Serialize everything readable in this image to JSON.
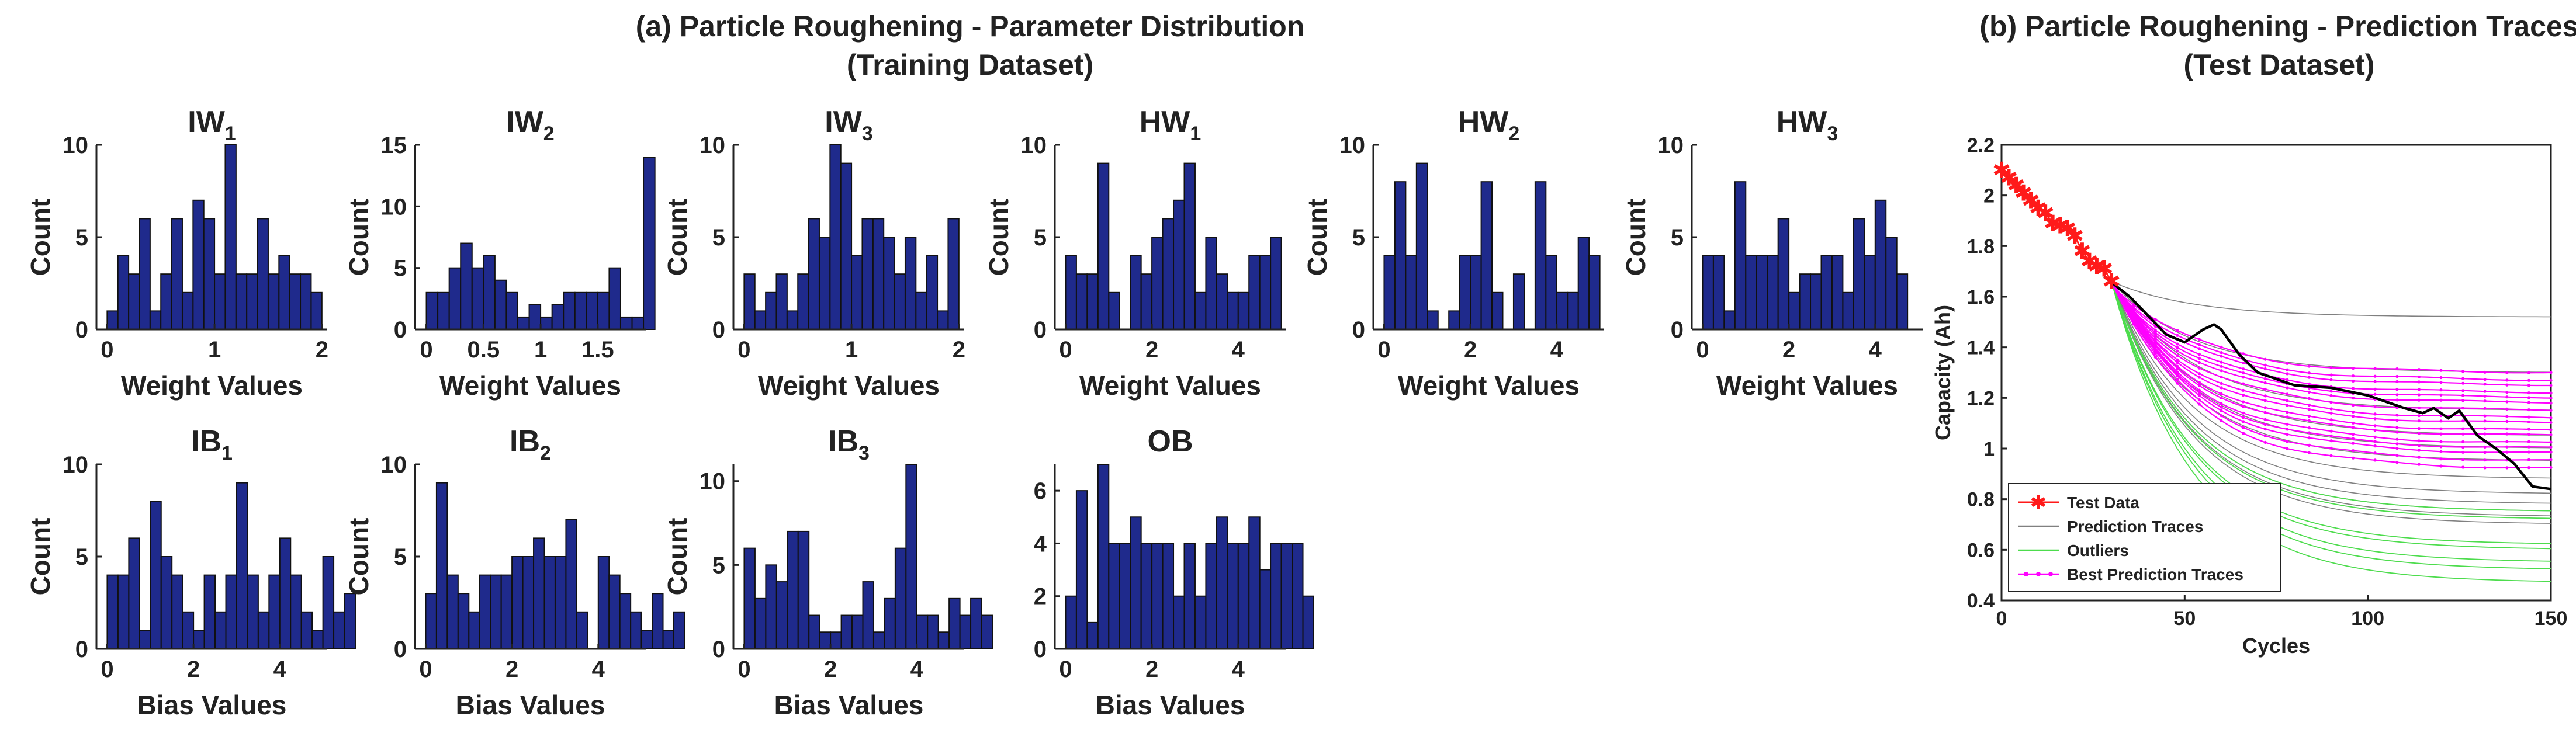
{
  "header": {
    "left_title_line1": "(a) Particle Roughening - Parameter Distribution",
    "left_title_line2": "(Training Dataset)",
    "right_title_line1": "(b) Particle Roughening - Prediction Traces",
    "right_title_line2": "(Test Dataset)"
  },
  "colors": {
    "bar_fill": "#1f2a8c",
    "bar_edge": "#111111",
    "test_data": "#ff1a1a",
    "prediction": "#808080",
    "outliers": "#4ddc4d",
    "best": "#ff00ff",
    "actual": "#000000"
  },
  "chart_data": [
    {
      "type": "bar",
      "title_base": "IW",
      "title_sub": "1",
      "xlabel": "Weight Values",
      "ylabel": "Count",
      "xlim": [
        -0.1,
        2.05
      ],
      "ylim": [
        0,
        10
      ],
      "bin_start": 0,
      "bin_width": 0.1,
      "xticks": [
        0,
        1,
        2
      ],
      "xtick_labels": [
        "0",
        "1",
        "2"
      ],
      "yticks": [
        0,
        5,
        10
      ],
      "ytick_labels": [
        "0",
        "5",
        "10"
      ],
      "values": [
        1,
        4,
        3,
        6,
        1,
        3,
        6,
        2,
        7,
        6,
        3,
        10,
        3,
        3,
        6,
        3,
        4,
        3,
        3,
        2
      ]
    },
    {
      "type": "bar",
      "title_base": "IW",
      "title_sub": "2",
      "xlabel": "Weight Values",
      "ylabel": "Count",
      "xlim": [
        -0.1,
        1.92
      ],
      "ylim": [
        0,
        15
      ],
      "bin_start": 0,
      "bin_width": 0.1,
      "xticks": [
        0,
        0.5,
        1,
        1.5
      ],
      "xtick_labels": [
        "0",
        "0.5",
        "1",
        "1.5"
      ],
      "yticks": [
        0,
        5,
        10,
        15
      ],
      "ytick_labels": [
        "0",
        "5",
        "10",
        "15"
      ],
      "values": [
        3,
        3,
        5,
        7,
        5,
        6,
        4,
        3,
        1,
        2,
        1,
        2,
        3,
        3,
        3,
        3,
        5,
        1,
        1,
        14
      ]
    },
    {
      "type": "bar",
      "title_base": "IW",
      "title_sub": "3",
      "xlabel": "Weight Values",
      "ylabel": "Count",
      "xlim": [
        -0.1,
        2.05
      ],
      "ylim": [
        0,
        10
      ],
      "bin_start": 0,
      "bin_width": 0.1,
      "xticks": [
        0,
        1,
        2
      ],
      "xtick_labels": [
        "0",
        "1",
        "2"
      ],
      "yticks": [
        0,
        5,
        10
      ],
      "ytick_labels": [
        "0",
        "5",
        "10"
      ],
      "values": [
        3,
        1,
        2,
        3,
        1,
        3,
        6,
        5,
        10,
        9,
        4,
        6,
        6,
        5,
        3,
        5,
        2,
        4,
        1,
        6
      ]
    },
    {
      "type": "bar",
      "title_base": "HW",
      "title_sub": "1",
      "xlabel": "Weight Values",
      "ylabel": "Count",
      "xlim": [
        -0.25,
        5.1
      ],
      "ylim": [
        0,
        10
      ],
      "bin_start": 0,
      "bin_width": 0.25,
      "xticks": [
        0,
        2,
        4
      ],
      "xtick_labels": [
        "0",
        "2",
        "4"
      ],
      "yticks": [
        0,
        5,
        10
      ],
      "ytick_labels": [
        "0",
        "5",
        "10"
      ],
      "values": [
        4,
        3,
        3,
        9,
        2,
        0,
        4,
        3,
        5,
        6,
        7,
        9,
        2,
        5,
        3,
        2,
        2,
        4,
        4,
        5
      ]
    },
    {
      "type": "bar",
      "title_base": "HW",
      "title_sub": "2",
      "xlabel": "Weight Values",
      "ylabel": "Count",
      "xlim": [
        -0.25,
        5.1
      ],
      "ylim": [
        0,
        10
      ],
      "bin_start": 0,
      "bin_width": 0.25,
      "xticks": [
        0,
        2,
        4
      ],
      "xtick_labels": [
        "0",
        "2",
        "4"
      ],
      "yticks": [
        0,
        5,
        10
      ],
      "ytick_labels": [
        "0",
        "5",
        "10"
      ],
      "values": [
        4,
        8,
        4,
        9,
        1,
        0,
        1,
        4,
        4,
        8,
        2,
        0,
        3,
        0,
        8,
        4,
        2,
        2,
        5,
        4
      ]
    },
    {
      "type": "bar",
      "title_base": "HW",
      "title_sub": "3",
      "xlabel": "Weight Values",
      "ylabel": "Count",
      "xlim": [
        -0.25,
        5.1
      ],
      "ylim": [
        0,
        10
      ],
      "bin_start": 0,
      "bin_width": 0.25,
      "xticks": [
        0,
        2,
        4
      ],
      "xtick_labels": [
        "0",
        "2",
        "4"
      ],
      "yticks": [
        0,
        5,
        10
      ],
      "ytick_labels": [
        "0",
        "5",
        "10"
      ],
      "values": [
        4,
        4,
        1,
        8,
        4,
        4,
        4,
        6,
        2,
        3,
        3,
        4,
        4,
        2,
        6,
        4,
        7,
        5,
        3,
        0
      ]
    },
    {
      "type": "bar",
      "title_base": "IB",
      "title_sub": "1",
      "xlabel": "Bias Values",
      "ylabel": "Count",
      "xlim": [
        -0.25,
        5.1
      ],
      "ylim": [
        0,
        10
      ],
      "bin_start": 0,
      "bin_width": 0.25,
      "xticks": [
        0,
        2,
        4
      ],
      "xtick_labels": [
        "0",
        "2",
        "4"
      ],
      "yticks": [
        0,
        5,
        10
      ],
      "ytick_labels": [
        "0",
        "5",
        "10"
      ],
      "values": [
        4,
        4,
        6,
        1,
        8,
        5,
        4,
        2,
        1,
        4,
        2,
        4,
        9,
        4,
        2,
        4,
        6,
        4,
        2,
        1,
        5,
        2,
        3
      ]
    },
    {
      "type": "bar",
      "title_base": "IB",
      "title_sub": "2",
      "xlabel": "Bias Values",
      "ylabel": "Count",
      "xlim": [
        -0.25,
        5.1
      ],
      "ylim": [
        0,
        10
      ],
      "bin_start": 0,
      "bin_width": 0.25,
      "xticks": [
        0,
        2,
        4
      ],
      "xtick_labels": [
        "0",
        "2",
        "4"
      ],
      "yticks": [
        0,
        5,
        10
      ],
      "ytick_labels": [
        "0",
        "5",
        "10"
      ],
      "values": [
        3,
        9,
        4,
        3,
        2,
        4,
        4,
        4,
        5,
        5,
        6,
        5,
        5,
        7,
        2,
        0,
        5,
        4,
        3,
        2,
        1,
        3,
        1,
        2
      ]
    },
    {
      "type": "bar",
      "title_base": "IB",
      "title_sub": "3",
      "xlabel": "Bias Values",
      "ylabel": "Count",
      "xlim": [
        -0.25,
        5.1
      ],
      "ylim": [
        0,
        11
      ],
      "bin_start": 0,
      "bin_width": 0.25,
      "xticks": [
        0,
        2,
        4
      ],
      "xtick_labels": [
        "0",
        "2",
        "4"
      ],
      "yticks": [
        0,
        5,
        10
      ],
      "ytick_labels": [
        "0",
        "5",
        "10"
      ],
      "values": [
        6,
        3,
        5,
        4,
        7,
        7,
        2,
        1,
        1,
        2,
        2,
        4,
        1,
        3,
        6,
        11,
        2,
        2,
        1,
        3,
        2,
        3,
        2
      ]
    },
    {
      "type": "bar",
      "title_base": "OB",
      "title_sub": "",
      "xlabel": "Bias Values",
      "ylabel": "",
      "xlim": [
        -0.25,
        5.1
      ],
      "ylim": [
        0,
        7
      ],
      "bin_start": 0,
      "bin_width": 0.25,
      "xticks": [
        0,
        2,
        4
      ],
      "xtick_labels": [
        "0",
        "2",
        "4"
      ],
      "yticks": [
        0,
        2,
        4,
        6
      ],
      "ytick_labels": [
        "0",
        "2",
        "4",
        "6"
      ],
      "values": [
        2,
        6,
        1,
        7,
        4,
        4,
        5,
        4,
        4,
        4,
        2,
        4,
        2,
        4,
        5,
        4,
        4,
        5,
        3,
        4,
        4,
        4,
        2
      ]
    },
    {
      "type": "line",
      "title": "(b) Particle Roughening - Prediction Traces",
      "xlabel": "Cycles",
      "ylabel": "Capacity (Ah)",
      "xlim": [
        0,
        150
      ],
      "ylim": [
        0.4,
        2.2
      ],
      "xticks": [
        0,
        50,
        100,
        150
      ],
      "xtick_labels": [
        "0",
        "50",
        "100",
        "150"
      ],
      "yticks": [
        0.4,
        0.6,
        0.8,
        1.0,
        1.2,
        1.4,
        1.6,
        1.8,
        2.0,
        2.2
      ],
      "ytick_labels": [
        "0.4",
        "0.6",
        "0.8",
        "1",
        "1.2",
        "1.4",
        "1.6",
        "1.8",
        "2",
        "2.2"
      ],
      "legend_location": "bottom-left",
      "legend": [
        "Test Data",
        "Prediction Traces",
        "Outliers",
        "Best Prediction Traces"
      ],
      "test_data": {
        "x": [
          0,
          2,
          4,
          6,
          8,
          10,
          12,
          14,
          16,
          18,
          20,
          22,
          24,
          26,
          28,
          30
        ],
        "y": [
          2.1,
          2.07,
          2.04,
          2.01,
          1.98,
          1.95,
          1.93,
          1.89,
          1.88,
          1.87,
          1.84,
          1.78,
          1.74,
          1.72,
          1.71,
          1.66
        ]
      },
      "actual_trace": {
        "x": [
          28,
          35,
          45,
          50,
          55,
          58,
          60,
          65,
          70,
          80,
          90,
          100,
          110,
          115,
          118,
          122,
          125,
          130,
          135,
          140,
          145,
          150
        ],
        "y": [
          1.68,
          1.6,
          1.45,
          1.42,
          1.47,
          1.49,
          1.47,
          1.37,
          1.3,
          1.25,
          1.24,
          1.21,
          1.16,
          1.14,
          1.16,
          1.12,
          1.15,
          1.05,
          1.0,
          0.94,
          0.85,
          0.84
        ]
      },
      "start_x": 30,
      "start_y": 1.66,
      "prediction_final": [
        1.52,
        1.3,
        1.15,
        1.05,
        1.0,
        0.95,
        0.88,
        0.82,
        0.78,
        0.75,
        0.73,
        0.7
      ],
      "outlier_final": [
        0.47,
        0.52,
        0.55,
        0.6,
        0.62,
        0.72,
        0.75
      ],
      "best_final": [
        0.92,
        0.95,
        0.98,
        1.0,
        1.02,
        1.05,
        1.07,
        1.1,
        1.12,
        1.15,
        1.18,
        1.2,
        1.22,
        1.25,
        1.27,
        1.3
      ]
    }
  ]
}
